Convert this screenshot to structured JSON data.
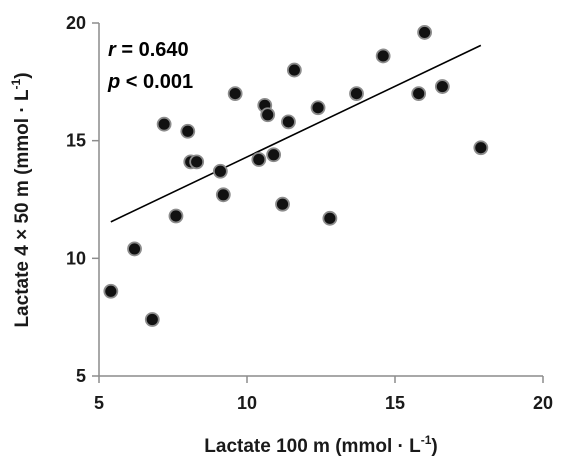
{
  "chart_data": {
    "type": "scatter",
    "xlabel": "Lactate 100 m (mmol · L",
    "xlabel_sup": "-1",
    "xlabel_suffix": ")",
    "ylabel": "Lactate 4 × 50 m (mmol · L",
    "ylabel_sup": "-1",
    "ylabel_suffix": ")",
    "xlim": [
      5,
      20
    ],
    "ylim": [
      5,
      20
    ],
    "xticks": [
      5,
      10,
      15,
      20
    ],
    "yticks": [
      5,
      10,
      15,
      20
    ],
    "xtick_labels": [
      "5",
      "10",
      "15",
      "20"
    ],
    "ytick_labels": [
      "5",
      "10",
      "15",
      "20"
    ],
    "grid": false,
    "annotations": {
      "r_symbol": "r",
      "r_value": " = 0.640",
      "p_symbol": "p",
      "p_value": " < 0.001"
    },
    "trendline": {
      "x": [
        5.4,
        17.9
      ],
      "y": [
        11.55,
        19.05
      ]
    },
    "points": [
      {
        "x": 5.4,
        "y": 8.6
      },
      {
        "x": 6.2,
        "y": 10.4
      },
      {
        "x": 6.8,
        "y": 7.4
      },
      {
        "x": 7.2,
        "y": 15.7
      },
      {
        "x": 7.6,
        "y": 11.8
      },
      {
        "x": 8.0,
        "y": 15.4
      },
      {
        "x": 8.1,
        "y": 14.1
      },
      {
        "x": 8.3,
        "y": 14.1
      },
      {
        "x": 9.1,
        "y": 13.7
      },
      {
        "x": 9.2,
        "y": 12.7
      },
      {
        "x": 9.6,
        "y": 17.0
      },
      {
        "x": 10.4,
        "y": 14.2
      },
      {
        "x": 10.6,
        "y": 16.5
      },
      {
        "x": 10.7,
        "y": 16.1
      },
      {
        "x": 10.9,
        "y": 14.4
      },
      {
        "x": 11.2,
        "y": 12.3
      },
      {
        "x": 11.4,
        "y": 15.8
      },
      {
        "x": 11.6,
        "y": 18.0
      },
      {
        "x": 12.4,
        "y": 16.4
      },
      {
        "x": 12.8,
        "y": 11.7
      },
      {
        "x": 13.7,
        "y": 17.0
      },
      {
        "x": 14.6,
        "y": 18.6
      },
      {
        "x": 15.8,
        "y": 17.0
      },
      {
        "x": 16.0,
        "y": 19.6
      },
      {
        "x": 16.6,
        "y": 17.3
      },
      {
        "x": 17.9,
        "y": 14.7
      }
    ],
    "colors": {
      "marker_fill": "#111111",
      "marker_stroke": "#8c8c8c",
      "axis": "#8c8c8c",
      "trendline": "#000000"
    }
  }
}
